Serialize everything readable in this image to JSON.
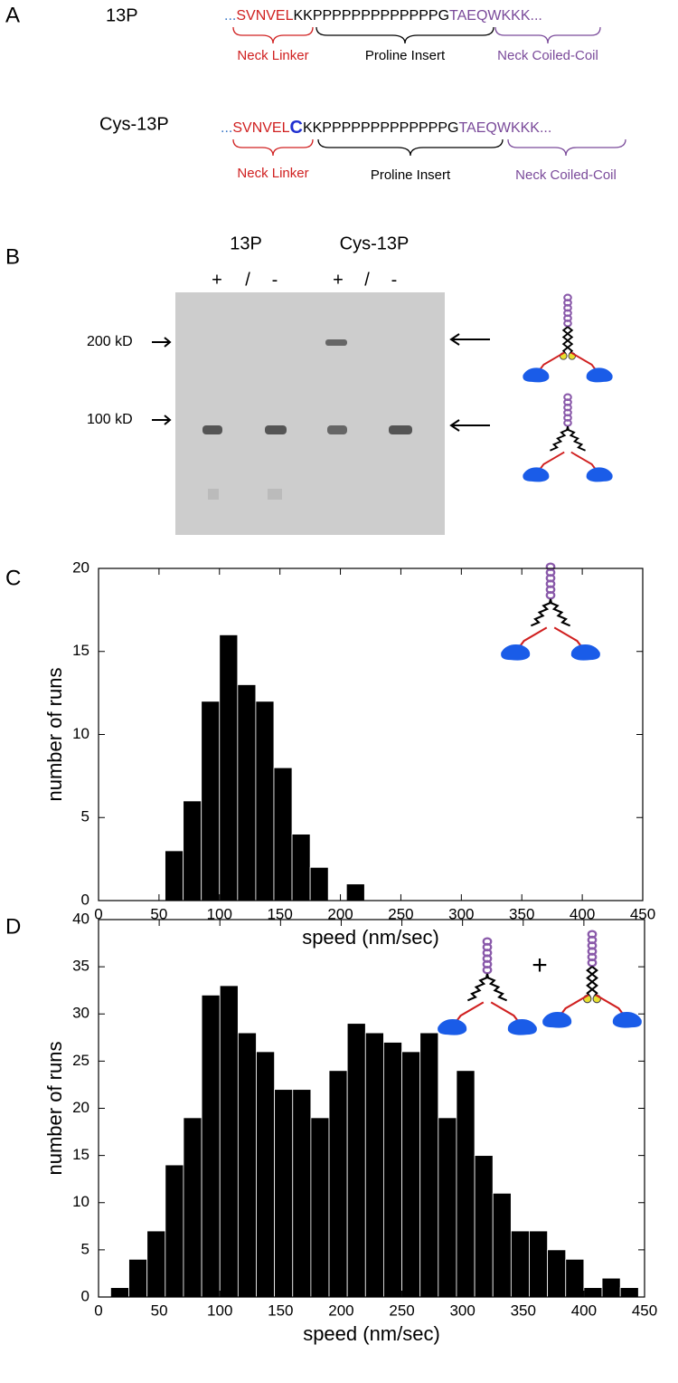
{
  "panel_labels": [
    "A",
    "B",
    "C",
    "D"
  ],
  "panel_a": {
    "rows": [
      {
        "name": "13P",
        "sequence": [
          "...",
          "SVNVEL",
          "KKPPPPPPPPPPPPPG",
          "TAEQWKKK..."
        ],
        "regions": [
          "Neck Linker",
          "Proline Insert",
          "Neck Coiled-Coil"
        ]
      },
      {
        "name": "Cys-13P",
        "sequence": [
          "...",
          "SVNVEL",
          "C",
          "KKPPPPPPPPPPPPPG",
          "TAEQWKKK..."
        ],
        "regions": [
          "Neck Linker",
          "Proline Insert",
          "Neck Coiled-Coil"
        ]
      }
    ]
  },
  "panel_b": {
    "groups": [
      "13P",
      "Cys-13P"
    ],
    "lanes": [
      "+",
      "/",
      "-",
      "+",
      "/",
      "-"
    ],
    "markers": [
      "200 kD",
      "100 kD"
    ]
  },
  "chart_data": [
    {
      "type": "histogram",
      "bins": [
        55,
        70,
        85,
        100,
        115,
        130,
        145,
        160,
        175,
        190,
        205,
        220
      ],
      "values": [
        3,
        6,
        12,
        16,
        13,
        12,
        8,
        4,
        2,
        0,
        1
      ],
      "color": "#000000",
      "xlabel": "speed (nm/sec)",
      "ylabel": "number of runs",
      "xlim": [
        0,
        450
      ],
      "xticks": [
        0,
        50,
        100,
        150,
        200,
        250,
        300,
        350,
        400,
        450
      ],
      "ylim": [
        0,
        20
      ],
      "yticks": [
        0,
        5,
        10,
        15,
        20
      ]
    },
    {
      "type": "histogram",
      "bins": [
        10,
        25,
        40,
        55,
        70,
        85,
        100,
        115,
        130,
        145,
        160,
        175,
        190,
        205,
        220,
        235,
        250,
        265,
        280,
        295,
        310,
        325,
        340,
        355,
        370,
        385,
        400,
        415,
        430,
        445
      ],
      "values": [
        1,
        4,
        7,
        14,
        19,
        32,
        33,
        28,
        26,
        22,
        22,
        19,
        24,
        29,
        28,
        27,
        26,
        28,
        19,
        24,
        15,
        11,
        7,
        7,
        5,
        4,
        1,
        2,
        1
      ],
      "color": "#000000",
      "annotation": "+",
      "xlabel": "speed (nm/sec)",
      "ylabel": "number of runs",
      "xlim": [
        0,
        450
      ],
      "xticks": [
        0,
        50,
        100,
        150,
        200,
        250,
        300,
        350,
        400,
        450
      ],
      "ylim": [
        0,
        40
      ],
      "yticks": [
        0,
        5,
        10,
        15,
        20,
        25,
        30,
        35,
        40
      ]
    }
  ]
}
